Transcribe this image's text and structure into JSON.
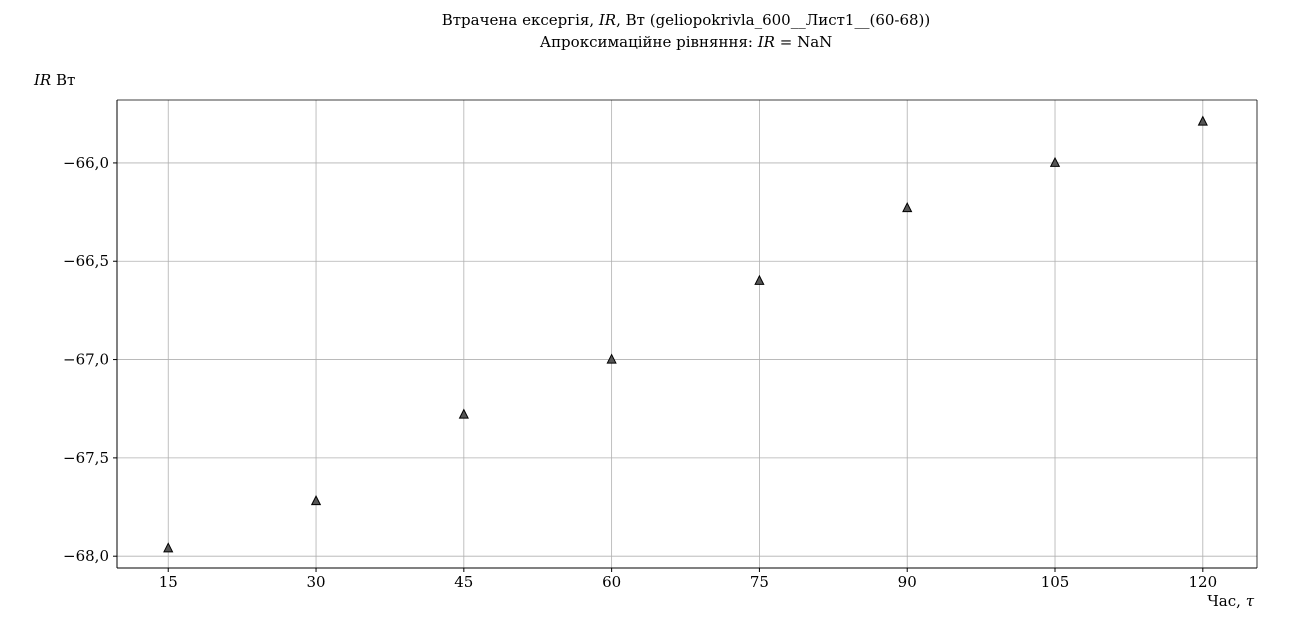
{
  "chart_data": {
    "type": "scatter",
    "title_line1": "Втрачена ексергія, IR, Вт (geliopokrivla_600__Лист1__(60-68))",
    "title_line2": "Апроксимаційне рівняння: IR = NaN",
    "ylabel": "IR Вт",
    "xlabel": "Час, τ",
    "x_ticks": [
      15,
      30,
      45,
      60,
      75,
      90,
      105,
      120
    ],
    "x_tick_labels": [
      "15",
      "30",
      "45",
      "60",
      "75",
      "90",
      "105",
      "120"
    ],
    "y_ticks": [
      -68.0,
      -67.5,
      -67.0,
      -66.5,
      -66.0
    ],
    "y_tick_labels": [
      "−68,0",
      "−67,5",
      "−67,0",
      "−66,5",
      "−66,0"
    ],
    "xlim": [
      9.8,
      125.5
    ],
    "ylim": [
      -68.06,
      -65.68
    ],
    "grid": true,
    "marker": "triangle",
    "marker_color": "#555555",
    "series": [
      {
        "x": [
          15,
          30,
          45,
          60,
          75,
          90,
          105,
          120
        ],
        "y": [
          -67.96,
          -67.72,
          -67.28,
          -67.0,
          -66.6,
          -66.23,
          -66.0,
          -65.79
        ]
      }
    ]
  }
}
